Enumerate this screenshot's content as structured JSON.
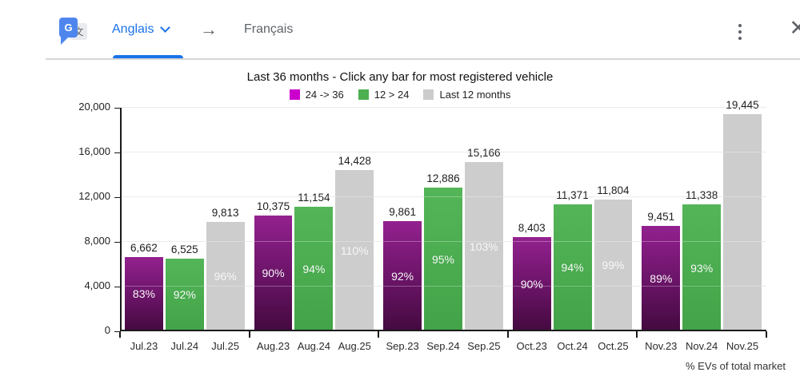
{
  "translate_bar": {
    "logo_letter_g": "G",
    "logo_glyph": "文",
    "source_language": "Anglais",
    "target_language": "Français",
    "arrow": "→",
    "close": "✕",
    "accent_color": "#1a73e8"
  },
  "chart_data": {
    "type": "bar",
    "title": "Last 36 months - Click any bar for most registered vehicle",
    "xlabel": "",
    "ylabel": "",
    "ylim": [
      0,
      20000
    ],
    "grid": true,
    "legend_position": "top",
    "yticks": [
      {
        "value": 0,
        "label": "0"
      },
      {
        "value": 4000,
        "label": "4,000"
      },
      {
        "value": 8000,
        "label": "8,000"
      },
      {
        "value": 12000,
        "label": "12,000"
      },
      {
        "value": 16000,
        "label": "16,000"
      },
      {
        "value": 20000,
        "label": "20,000"
      }
    ],
    "legend": [
      {
        "label": "24 -> 36",
        "color": "#cc00cc"
      },
      {
        "label": "12 > 24",
        "color": "#4caf50"
      },
      {
        "label": "Last 12 months",
        "color": "#cccccc"
      }
    ],
    "series_names": [
      "24 -> 36",
      "12 > 24",
      "Last 12 months"
    ],
    "groups": [
      {
        "bars": [
          {
            "month": "Jul.23",
            "series": "24 -> 36",
            "value": 6662,
            "value_label": "6,662",
            "pct_label": "83%"
          },
          {
            "month": "Jul.24",
            "series": "12 > 24",
            "value": 6525,
            "value_label": "6,525",
            "pct_label": "92%"
          },
          {
            "month": "Jul.25",
            "series": "Last 12 months",
            "value": 9813,
            "value_label": "9,813",
            "pct_label": "96%"
          }
        ]
      },
      {
        "bars": [
          {
            "month": "Aug.23",
            "series": "24 -> 36",
            "value": 10375,
            "value_label": "10,375",
            "pct_label": "90%"
          },
          {
            "month": "Aug.24",
            "series": "12 > 24",
            "value": 11154,
            "value_label": "11,154",
            "pct_label": "94%"
          },
          {
            "month": "Aug.25",
            "series": "Last 12 months",
            "value": 14428,
            "value_label": "14,428",
            "pct_label": "110%"
          }
        ]
      },
      {
        "bars": [
          {
            "month": "Sep.23",
            "series": "24 -> 36",
            "value": 9861,
            "value_label": "9,861",
            "pct_label": "92%"
          },
          {
            "month": "Sep.24",
            "series": "12 > 24",
            "value": 12886,
            "value_label": "12,886",
            "pct_label": "95%"
          },
          {
            "month": "Sep.25",
            "series": "Last 12 months",
            "value": 15166,
            "value_label": "15,166",
            "pct_label": "103%"
          }
        ]
      },
      {
        "bars": [
          {
            "month": "Oct.23",
            "series": "24 -> 36",
            "value": 8403,
            "value_label": "8,403",
            "pct_label": "90%"
          },
          {
            "month": "Oct.24",
            "series": "12 > 24",
            "value": 11371,
            "value_label": "11,371",
            "pct_label": "94%"
          },
          {
            "month": "Oct.25",
            "series": "Last 12 months",
            "value": 11804,
            "value_label": "11,804",
            "pct_label": "99%"
          }
        ]
      },
      {
        "bars": [
          {
            "month": "Nov.23",
            "series": "24 -> 36",
            "value": 9451,
            "value_label": "9,451",
            "pct_label": "89%"
          },
          {
            "month": "Nov.24",
            "series": "12 > 24",
            "value": 11338,
            "value_label": "11,338",
            "pct_label": "93%"
          },
          {
            "month": "Nov.25",
            "series": "Last 12 months",
            "value": 19445,
            "value_label": "19,445",
            "pct_label": ""
          }
        ]
      }
    ],
    "colors": {
      "bar_purple_top": "#93218f",
      "bar_purple_bottom": "#440a3f",
      "bar_green": "#4caf50",
      "bar_gray": "#cdcdcd",
      "axis": "#1a1a1a",
      "gridline": "#e3e3e3"
    }
  },
  "footnote": "% EVs of total market"
}
